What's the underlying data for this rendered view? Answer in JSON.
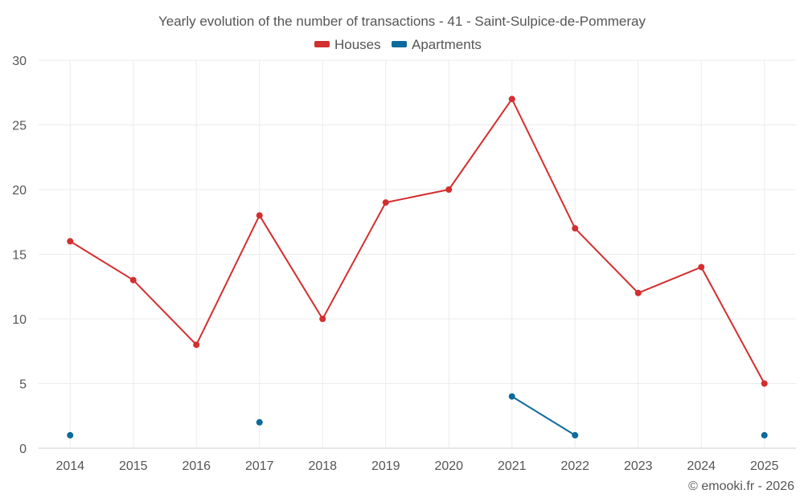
{
  "chart_data": {
    "type": "line",
    "title": "Yearly evolution of the number of transactions - 41 - Saint-Sulpice-de-Pommeray",
    "categories": [
      "2014",
      "2015",
      "2016",
      "2017",
      "2018",
      "2019",
      "2020",
      "2021",
      "2022",
      "2023",
      "2024",
      "2025"
    ],
    "ylim": [
      0,
      30
    ],
    "yticks": [
      0,
      5,
      10,
      15,
      20,
      25,
      30
    ],
    "grid": true,
    "legend_position": "top-center",
    "series": [
      {
        "name": "Houses",
        "color": "#d32f2f",
        "values": [
          16,
          13,
          8,
          18,
          10,
          19,
          20,
          27,
          17,
          12,
          14,
          5
        ]
      },
      {
        "name": "Apartments",
        "color": "#0d6a9c",
        "values": [
          1,
          null,
          null,
          2,
          null,
          null,
          null,
          4,
          1,
          null,
          null,
          1
        ]
      }
    ],
    "credit": "© emooki.fr - 2026"
  }
}
